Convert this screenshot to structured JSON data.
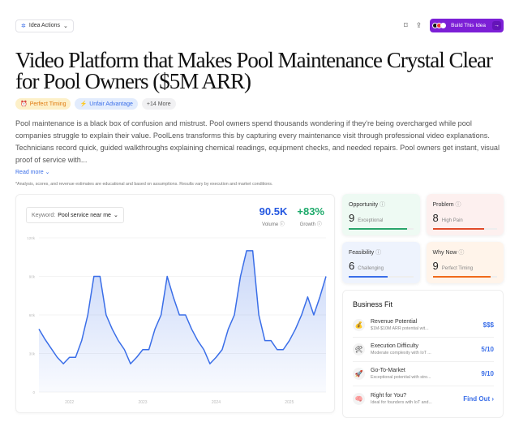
{
  "header": {
    "actions_label": "Idea Actions",
    "build_label": "Build This Idea"
  },
  "title": "Video Platform that Makes Pool Maintenance Crystal Clear for Pool Owners ($5M ARR)",
  "tags": [
    {
      "label": "Perfect Timing",
      "icon": "⏰"
    },
    {
      "label": "Unfair Advantage",
      "icon": "⚡"
    },
    {
      "label": "+14 More"
    }
  ],
  "description": "Pool maintenance is a black box of confusion and mistrust. Pool owners spend thousands wondering if they're being overcharged while pool companies struggle to explain their value. PoolLens transforms this by capturing every maintenance visit through professional video explanations. Technicians record quick, guided walkthroughs explaining chemical readings, equipment checks, and needed repairs. Pool owners get instant, visual proof of service with...",
  "read_more": "Read more",
  "disclaimer": "*Analysis, scores, and revenue estimates are educational and based on assumptions. Results vary by execution and market conditions.",
  "trend": {
    "keyword_label": "Keyword:",
    "keyword": "Pool service near me",
    "volume": "90.5K",
    "volume_label": "Volume",
    "growth": "+83%",
    "growth_label": "Growth"
  },
  "chart_data": {
    "type": "area",
    "color": "#3a6ee8",
    "ylim": [
      0,
      120000
    ],
    "yticks": [
      "0",
      "30k",
      "60k",
      "90k",
      "120k"
    ],
    "xticks": [
      "2022",
      "2023",
      "2024",
      "2025"
    ],
    "grid": true,
    "x_start": "2021-08",
    "x_end": "2025-07",
    "values": [
      49000,
      41000,
      34000,
      27000,
      22000,
      27000,
      27000,
      40000,
      60000,
      90000,
      90000,
      60000,
      49000,
      40000,
      33000,
      22000,
      27000,
      33000,
      33000,
      49000,
      60000,
      90000,
      74000,
      60000,
      60000,
      49000,
      40000,
      33000,
      22000,
      27000,
      33000,
      49000,
      60000,
      90000,
      110000,
      110000,
      60000,
      40000,
      40000,
      33000,
      33000,
      40000,
      49000,
      60000,
      74000,
      60000,
      74000,
      90000
    ]
  },
  "scores": [
    {
      "label": "Opportunity",
      "value": "9",
      "desc": "Exceptional",
      "fill": 0.9,
      "color": "#2aa56b",
      "bg": "#eefaf3"
    },
    {
      "label": "Problem",
      "value": "8",
      "desc": "High Pain",
      "fill": 0.8,
      "color": "#e04b2a",
      "bg": "#fdf0ef"
    },
    {
      "label": "Feasibility",
      "value": "6",
      "desc": "Challenging",
      "fill": 0.6,
      "color": "#3a6ee8",
      "bg": "#eef3fd"
    },
    {
      "label": "Why Now",
      "value": "9",
      "desc": "Perfect Timing",
      "fill": 0.9,
      "color": "#f06a1a",
      "bg": "#fff4ea"
    }
  ],
  "business_fit": {
    "title": "Business Fit",
    "rows": [
      {
        "icon": "💰",
        "label": "Revenue Potential",
        "desc": "$1M-$10M ARR potential wit...",
        "value": "$$$"
      },
      {
        "icon": "🛠",
        "label": "Execution Difficulty",
        "desc": "Moderate complexity with IoT ...",
        "value": "5/10"
      },
      {
        "icon": "🚀",
        "label": "Go-To-Market",
        "desc": "Exceptional potential with stro...",
        "value": "9/10"
      },
      {
        "icon": "🧠",
        "label": "Right for You?",
        "desc": "Ideal for founders with IoT and...",
        "value": "Find Out ›"
      }
    ]
  }
}
